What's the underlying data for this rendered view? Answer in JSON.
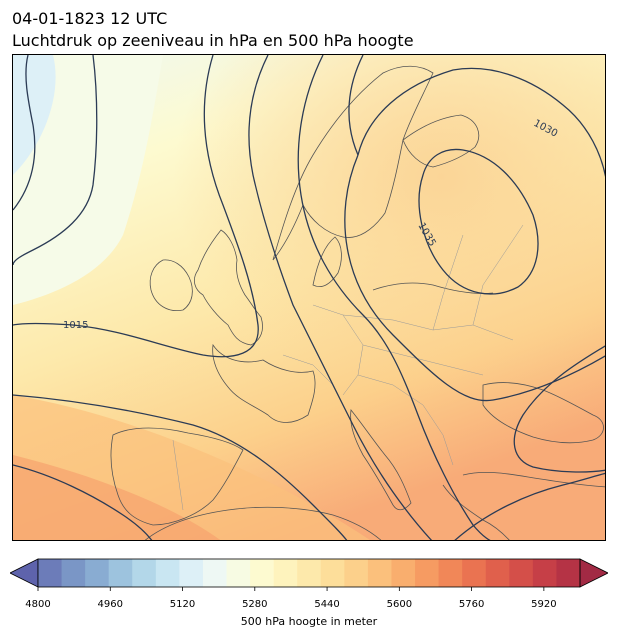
{
  "title": {
    "line1": "04-01-1823 12 UTC",
    "line2": "Luchtdruk op zeeniveau in hPa en 500 hPa hoogte"
  },
  "map": {
    "isobar_labels": [
      "1015",
      "1030",
      "1035"
    ],
    "colors": {
      "coast": "#555555",
      "isobar": "#2b3b55",
      "border": "#999999"
    }
  },
  "colorbar": {
    "label": "500 hPa hoogte in meter",
    "ticks": [
      "4800",
      "4960",
      "5120",
      "5280",
      "5440",
      "5600",
      "5760",
      "5920"
    ],
    "range": [
      4800,
      6000
    ],
    "step": 40,
    "colors": [
      "#5e63ac",
      "#6c7cb9",
      "#7a96c6",
      "#89acd2",
      "#9dc3de",
      "#b3d7e9",
      "#c9e6f2",
      "#ddf0f7",
      "#eef8f4",
      "#f7fbe3",
      "#fdfad0",
      "#fef3bd",
      "#fde9ab",
      "#fdde9a",
      "#fcd08b",
      "#fbc07c",
      "#f9ae6e",
      "#f69b62",
      "#f18758",
      "#ea7351",
      "#e0604c",
      "#d44f49",
      "#c63f47",
      "#b53345",
      "#a22a44"
    ]
  }
}
